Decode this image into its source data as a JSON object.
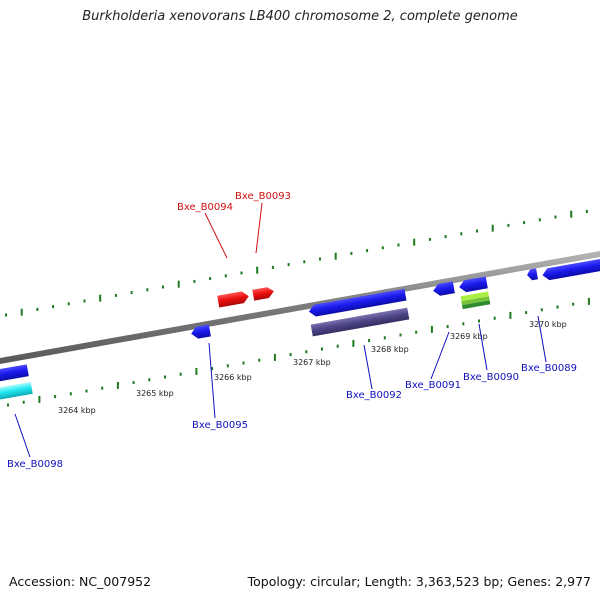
{
  "title": "Burkholderia xenovorans LB400 chromosome 2, complete genome",
  "footer": {
    "accession": "Accession: NC_007952",
    "summary": "Topology: circular; Length: 3,363,523 bp; Genes: 2,977"
  },
  "colors": {
    "backbone": "#8a8a8a",
    "tick": "#1e7a1e",
    "forward_gene_label": "#d01010",
    "reverse_gene_label": "#1010c0",
    "gene_blue": "#1a1aee",
    "gene_red": "#ee1111",
    "gene_purple": "#4f4788",
    "gene_cyan": "#22e8f0",
    "gene_green_light": "#a8ee44",
    "gene_green_dark": "#2e8a2e"
  },
  "scale": {
    "tick_labels": [
      "3264 kbp",
      "3265 kbp",
      "3266 kbp",
      "3267 kbp",
      "3268 kbp",
      "3269 kbp",
      "3270 kbp"
    ]
  },
  "genes": [
    {
      "locus": "Bxe_B0094",
      "strand": "forward",
      "color": "red"
    },
    {
      "locus": "Bxe_B0093",
      "strand": "forward",
      "color": "red"
    },
    {
      "locus": "Bxe_B0095",
      "strand": "reverse",
      "color": "blue"
    },
    {
      "locus": "Bxe_B0092",
      "strand": "reverse",
      "color": "blue"
    },
    {
      "locus": "Bxe_B0091",
      "strand": "reverse",
      "color": "blue"
    },
    {
      "locus": "Bxe_B0090",
      "strand": "reverse",
      "color": "blue"
    },
    {
      "locus": "Bxe_B0089",
      "strand": "reverse",
      "color": "blue"
    },
    {
      "locus": "Bxe_B0098",
      "strand": "reverse",
      "color": "blue"
    }
  ]
}
